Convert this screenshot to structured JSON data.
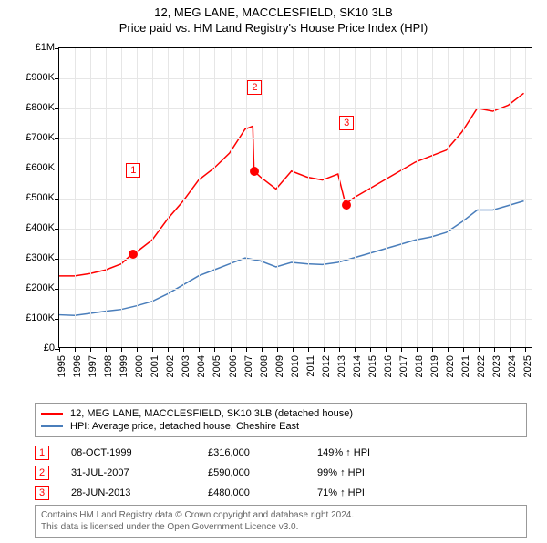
{
  "title": "12, MEG LANE, MACCLESFIELD, SK10 3LB",
  "subtitle": "Price paid vs. HM Land Registry's House Price Index (HPI)",
  "chart": {
    "type": "line",
    "background_color": "#ffffff",
    "grid_color": "#e6e6e6",
    "axis_color": "#000000",
    "tick_fontsize": 11,
    "x": {
      "min": 1995,
      "max": 2025.5,
      "ticks": [
        1995,
        1996,
        1997,
        1998,
        1999,
        2000,
        2001,
        2002,
        2003,
        2004,
        2005,
        2006,
        2007,
        2008,
        2009,
        2010,
        2011,
        2012,
        2013,
        2014,
        2015,
        2016,
        2017,
        2018,
        2019,
        2020,
        2021,
        2022,
        2023,
        2024,
        2025
      ]
    },
    "y": {
      "min": 0,
      "max": 1000000,
      "tick_step": 100000,
      "tick_labels": [
        "£0",
        "£100K",
        "£200K",
        "£300K",
        "£400K",
        "£500K",
        "£600K",
        "£700K",
        "£800K",
        "£900K",
        "£1M"
      ]
    },
    "series": [
      {
        "id": "property",
        "label": "12, MEG LANE, MACCLESFIELD, SK10 3LB (detached house)",
        "color": "#ff0000",
        "line_width": 1.5,
        "data": [
          [
            1995,
            240000
          ],
          [
            1996,
            240000
          ],
          [
            1997,
            248000
          ],
          [
            1998,
            260000
          ],
          [
            1999,
            280000
          ],
          [
            1999.77,
            316000
          ],
          [
            2000,
            320000
          ],
          [
            2001,
            360000
          ],
          [
            2002,
            430000
          ],
          [
            2003,
            490000
          ],
          [
            2004,
            560000
          ],
          [
            2005,
            600000
          ],
          [
            2006,
            650000
          ],
          [
            2007,
            730000
          ],
          [
            2007.5,
            740000
          ],
          [
            2007.58,
            590000
          ],
          [
            2008,
            570000
          ],
          [
            2009,
            530000
          ],
          [
            2010,
            590000
          ],
          [
            2011,
            570000
          ],
          [
            2012,
            560000
          ],
          [
            2013,
            580000
          ],
          [
            2013.49,
            480000
          ],
          [
            2014,
            500000
          ],
          [
            2015,
            530000
          ],
          [
            2016,
            560000
          ],
          [
            2017,
            590000
          ],
          [
            2018,
            620000
          ],
          [
            2019,
            640000
          ],
          [
            2020,
            660000
          ],
          [
            2021,
            720000
          ],
          [
            2022,
            800000
          ],
          [
            2023,
            790000
          ],
          [
            2024,
            810000
          ],
          [
            2025,
            850000
          ]
        ]
      },
      {
        "id": "hpi",
        "label": "HPI: Average price, detached house, Cheshire East",
        "color": "#4a7ebb",
        "line_width": 1.5,
        "data": [
          [
            1995,
            110000
          ],
          [
            1996,
            108000
          ],
          [
            1997,
            115000
          ],
          [
            1998,
            122000
          ],
          [
            1999,
            128000
          ],
          [
            2000,
            140000
          ],
          [
            2001,
            155000
          ],
          [
            2002,
            180000
          ],
          [
            2003,
            210000
          ],
          [
            2004,
            240000
          ],
          [
            2005,
            260000
          ],
          [
            2006,
            280000
          ],
          [
            2007,
            300000
          ],
          [
            2008,
            290000
          ],
          [
            2009,
            270000
          ],
          [
            2010,
            285000
          ],
          [
            2011,
            280000
          ],
          [
            2012,
            278000
          ],
          [
            2013,
            285000
          ],
          [
            2014,
            300000
          ],
          [
            2015,
            315000
          ],
          [
            2016,
            330000
          ],
          [
            2017,
            345000
          ],
          [
            2018,
            360000
          ],
          [
            2019,
            370000
          ],
          [
            2020,
            385000
          ],
          [
            2021,
            420000
          ],
          [
            2022,
            460000
          ],
          [
            2023,
            460000
          ],
          [
            2024,
            475000
          ],
          [
            2025,
            490000
          ]
        ]
      }
    ],
    "sale_points": [
      {
        "x": 1999.77,
        "y": 316000,
        "marker": "1",
        "marker_y_offset": -100
      },
      {
        "x": 2007.58,
        "y": 590000,
        "marker": "2",
        "marker_y_offset": -100
      },
      {
        "x": 2013.49,
        "y": 480000,
        "marker": "3",
        "marker_y_offset": -98
      }
    ],
    "point_color": "#ff0000",
    "point_radius": 5
  },
  "legend": {
    "border_color": "#999999",
    "rows": [
      {
        "color": "#ff0000",
        "label": "12, MEG LANE, MACCLESFIELD, SK10 3LB (detached house)"
      },
      {
        "color": "#4a7ebb",
        "label": "HPI: Average price, detached house, Cheshire East"
      }
    ]
  },
  "sales": [
    {
      "marker": "1",
      "date": "08-OCT-1999",
      "price": "£316,000",
      "hpi": "149% ↑ HPI"
    },
    {
      "marker": "2",
      "date": "31-JUL-2007",
      "price": "£590,000",
      "hpi": "99% ↑ HPI"
    },
    {
      "marker": "3",
      "date": "28-JUN-2013",
      "price": "£480,000",
      "hpi": "71% ↑ HPI"
    }
  ],
  "attribution": {
    "line1": "Contains HM Land Registry data © Crown copyright and database right 2024.",
    "line2": "This data is licensed under the Open Government Licence v3.0."
  }
}
